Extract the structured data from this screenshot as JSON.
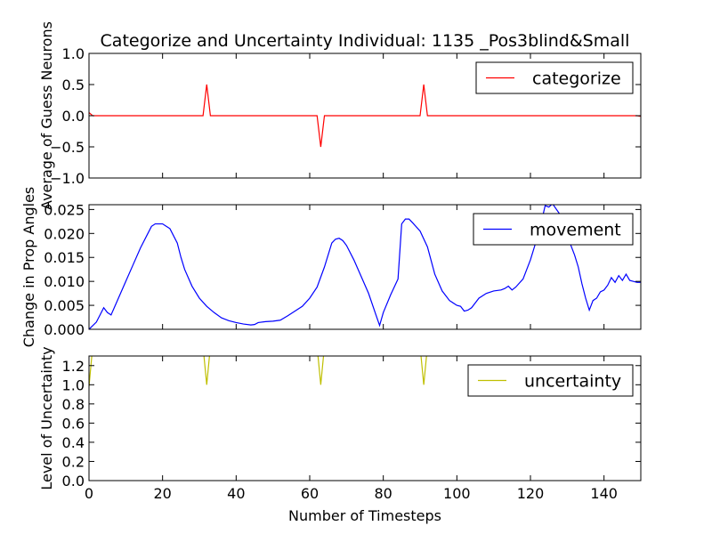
{
  "chart_data": {
    "type": "line",
    "title": "Categorize and Uncertainty Individual: 1135 _Pos3blind&Small",
    "xlabel": "Number of Timesteps",
    "xlim": [
      0,
      150
    ],
    "xticks": [
      "0",
      "20",
      "40",
      "60",
      "80",
      "100",
      "120",
      "140"
    ],
    "grid": false,
    "panels": [
      {
        "ylabel": "Average of Guess Neurons",
        "ylim": [
          -1.0,
          1.0
        ],
        "yticks": [
          "1.0",
          "0.5",
          "0.0",
          "−0.5",
          "−1.0"
        ],
        "legend_position": "top-right",
        "series": [
          {
            "name": "categorize",
            "color": "#ff0000",
            "x": [
              0,
              1,
              2,
              30,
              31,
              32,
              33,
              34,
              61,
              62,
              63,
              64,
              65,
              89,
              90,
              91,
              92,
              93,
              148,
              149,
              150
            ],
            "y": [
              0.05,
              0,
              0,
              0,
              0,
              0.5,
              0,
              0,
              0,
              0,
              -0.5,
              0,
              0,
              0,
              0,
              0.5,
              0,
              0,
              0,
              0,
              -0.01
            ]
          }
        ]
      },
      {
        "ylabel": "Change in Prop Angles",
        "ylim": [
          0.0,
          0.026
        ],
        "yticks": [
          "0.025",
          "0.020",
          "0.015",
          "0.010",
          "0.005",
          "0.000"
        ],
        "legend_position": "top-right",
        "series": [
          {
            "name": "movement",
            "color": "#0000ff",
            "x": [
              0,
              2,
              3,
              4,
              5,
              6,
              8,
              10,
              12,
              14,
              16,
              17,
              18,
              19,
              20,
              21,
              22,
              24,
              25,
              26,
              28,
              30,
              32,
              34,
              36,
              38,
              40,
              42,
              44,
              45,
              46,
              48,
              50,
              52,
              54,
              56,
              58,
              60,
              62,
              64,
              66,
              67,
              68,
              69,
              70,
              72,
              74,
              76,
              78,
              79,
              80,
              82,
              84,
              85,
              86,
              87,
              88,
              90,
              92,
              94,
              96,
              98,
              100,
              101,
              102,
              103,
              104,
              105,
              106,
              108,
              110,
              112,
              113,
              114,
              115,
              116,
              118,
              120,
              122,
              123,
              124,
              125,
              126,
              128,
              130,
              132,
              133,
              134,
              135,
              136,
              137,
              138,
              139,
              140,
              141,
              142,
              143,
              144,
              145,
              146,
              147,
              148,
              149,
              150
            ],
            "y": [
              0.0,
              0.0015,
              0.003,
              0.0045,
              0.0035,
              0.003,
              0.0065,
              0.01,
              0.0135,
              0.017,
              0.02,
              0.0215,
              0.022,
              0.022,
              0.022,
              0.0215,
              0.021,
              0.018,
              0.015,
              0.0125,
              0.009,
              0.0065,
              0.0048,
              0.0035,
              0.0024,
              0.0018,
              0.0014,
              0.0011,
              0.0009,
              0.001,
              0.0014,
              0.0016,
              0.0017,
              0.0019,
              0.0028,
              0.0038,
              0.0048,
              0.0065,
              0.0088,
              0.013,
              0.018,
              0.0188,
              0.019,
              0.0185,
              0.0175,
              0.0145,
              0.011,
              0.0075,
              0.003,
              0.0008,
              0.0035,
              0.0072,
              0.0105,
              0.022,
              0.023,
              0.023,
              0.0222,
              0.0205,
              0.0172,
              0.0115,
              0.008,
              0.006,
              0.005,
              0.0048,
              0.0038,
              0.004,
              0.0045,
              0.0055,
              0.0065,
              0.0075,
              0.008,
              0.0082,
              0.0085,
              0.009,
              0.0082,
              0.0088,
              0.0105,
              0.0145,
              0.0195,
              0.0225,
              0.0258,
              0.0255,
              0.0262,
              0.024,
              0.0195,
              0.0155,
              0.013,
              0.0095,
              0.0065,
              0.004,
              0.006,
              0.0065,
              0.0078,
              0.0082,
              0.0092,
              0.0108,
              0.0098,
              0.0112,
              0.0102,
              0.0115,
              0.0102,
              0.01,
              0.0098,
              0.0098
            ]
          }
        ]
      },
      {
        "ylabel": "Level of Uncertainty",
        "ylim": [
          0.0,
          1.3
        ],
        "yticks": [
          "1.2",
          "1.0",
          "0.8",
          "0.6",
          "0.4",
          "0.2",
          "0.0"
        ],
        "legend_position": "top-right",
        "series": [
          {
            "name": "uncertainty",
            "color": "#bfbf00",
            "x": [
              0,
              1,
              2,
              30,
              31,
              32,
              33,
              34,
              61,
              62,
              63,
              64,
              65,
              89,
              90,
              91,
              92,
              93,
              150
            ],
            "y": [
              0.98,
              1.4,
              1.4,
              1.4,
              1.4,
              1.0,
              1.4,
              1.4,
              1.4,
              1.4,
              1.0,
              1.4,
              1.4,
              1.4,
              1.4,
              1.0,
              1.4,
              1.4,
              1.4
            ]
          }
        ]
      }
    ]
  }
}
